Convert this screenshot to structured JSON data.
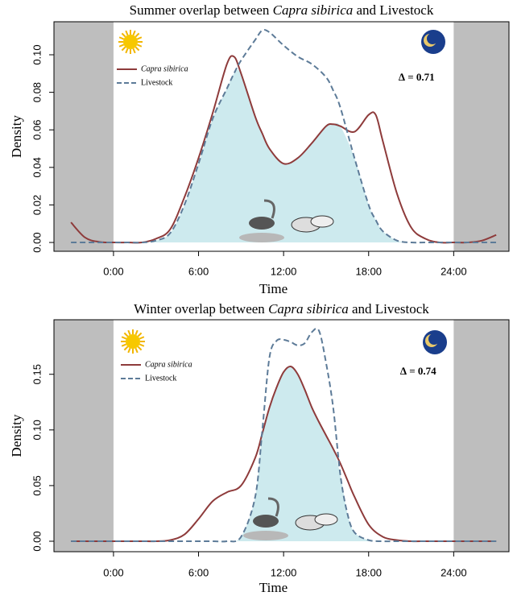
{
  "chart_data": [
    {
      "type": "line",
      "title": [
        "Summer overlap between ",
        "Capra sibirica",
        " and Livestock"
      ],
      "xlabel": "Time",
      "ylabel": "Density",
      "annotation": "∆ = 0.71",
      "x": [
        -3,
        -2,
        -1,
        0,
        1,
        2,
        3,
        4,
        5,
        6,
        7,
        8,
        8.5,
        9,
        10,
        10.5,
        11,
        12,
        13,
        14,
        15,
        15.5,
        16,
        17,
        18,
        18.5,
        19,
        20,
        21,
        22,
        23,
        24,
        25,
        26,
        27
      ],
      "series": [
        {
          "name": "Capra sibirica",
          "color": "#8e3b3b",
          "dash": false,
          "values": [
            0.0107,
            0.0026,
            0.0003,
            0,
            0,
            0,
            0.002,
            0.007,
            0.024,
            0.045,
            0.069,
            0.095,
            0.099,
            0.09,
            0.067,
            0.058,
            0.05,
            0.042,
            0.045,
            0.053,
            0.062,
            0.063,
            0.062,
            0.059,
            0.068,
            0.068,
            0.054,
            0.026,
            0.008,
            0.002,
            0,
            0,
            0,
            0.001,
            0.004
          ]
        },
        {
          "name": "Livestock",
          "color": "#5d7b98",
          "dash": true,
          "values": [
            0,
            0,
            0,
            0,
            0,
            0,
            0.001,
            0.005,
            0.02,
            0.042,
            0.066,
            0.082,
            0.09,
            0.097,
            0.108,
            0.113,
            0.112,
            0.105,
            0.099,
            0.095,
            0.088,
            0.081,
            0.072,
            0.045,
            0.02,
            0.012,
            0.006,
            0.001,
            0,
            0,
            0,
            0,
            0,
            0,
            0
          ]
        }
      ],
      "overlap_color": "#cdeaee",
      "shade_color": "#bebebe",
      "xlim": [
        -4.2,
        27.9
      ],
      "xticks": [
        {
          "value": 0,
          "label": "0:00"
        },
        {
          "value": 6,
          "label": "6:00"
        },
        {
          "value": 12,
          "label": "12:00"
        },
        {
          "value": 18,
          "label": "18:00"
        },
        {
          "value": 24,
          "label": "24:00"
        }
      ],
      "ylim": [
        -0.0047,
        0.1176
      ],
      "yticks": [
        {
          "value": 0,
          "label": "0.00"
        },
        0.02,
        0.04,
        0.06,
        0.08,
        {
          "value": 0.1,
          "label": "0.10"
        }
      ]
    },
    {
      "type": "line",
      "title": [
        "Winter overlap between ",
        "Capra sibirica",
        " and Livestock"
      ],
      "xlabel": "Time",
      "ylabel": "Density",
      "annotation": "∆ = 0.74",
      "x": [
        -3,
        -2,
        -1,
        0,
        1,
        2,
        3,
        4,
        5,
        6,
        7,
        8,
        9,
        10,
        10.5,
        11,
        11.5,
        12,
        12.5,
        13,
        13.5,
        14,
        14.5,
        15,
        15.5,
        16,
        16.5,
        17,
        18,
        19,
        20,
        21,
        22,
        23,
        24,
        25,
        26,
        27
      ],
      "series": [
        {
          "name": "Capra sibirica",
          "color": "#8e3b3b",
          "dash": false,
          "values": [
            0,
            0,
            0,
            0,
            0,
            0,
            0,
            0.001,
            0.006,
            0.02,
            0.036,
            0.044,
            0.05,
            0.075,
            0.097,
            0.12,
            0.138,
            0.152,
            0.157,
            0.15,
            0.136,
            0.12,
            0.107,
            0.095,
            0.083,
            0.07,
            0.055,
            0.04,
            0.015,
            0.004,
            0.001,
            0,
            0,
            0,
            0,
            0,
            0,
            0
          ]
        },
        {
          "name": "Livestock",
          "color": "#5d7b98",
          "dash": true,
          "values": [
            0,
            0,
            0,
            0,
            0,
            0,
            0,
            0,
            0,
            0,
            0,
            0,
            0.004,
            0.04,
            0.1,
            0.165,
            0.18,
            0.181,
            0.179,
            0.176,
            0.178,
            0.188,
            0.189,
            0.16,
            0.12,
            0.06,
            0.025,
            0.008,
            0.001,
            0,
            0,
            0,
            0,
            0,
            0,
            0,
            0,
            0
          ]
        }
      ],
      "overlap_color": "#cdeaee",
      "shade_color": "#bebebe",
      "xlim": [
        -4.2,
        27.9
      ],
      "xticks": [
        {
          "value": 0,
          "label": "0:00"
        },
        {
          "value": 6,
          "label": "6:00"
        },
        {
          "value": 12,
          "label": "12:00"
        },
        {
          "value": 18,
          "label": "18:00"
        },
        {
          "value": 24,
          "label": "24:00"
        }
      ],
      "ylim": [
        -0.0094,
        0.199
      ],
      "yticks": [
        {
          "value": 0,
          "label": "0.00"
        },
        0.05,
        {
          "value": 0.1,
          "label": "0.10"
        },
        0.15
      ]
    }
  ]
}
